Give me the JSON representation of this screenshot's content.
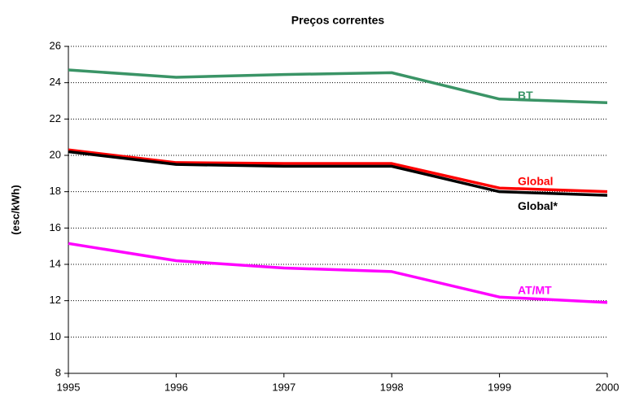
{
  "chart_data": {
    "type": "line",
    "title": "Preços correntes",
    "y_label": "(esc/kWh)",
    "x": [
      1995,
      1996,
      1997,
      1998,
      1999,
      2000
    ],
    "xlim": [
      1995,
      2000
    ],
    "xticks": [
      1995,
      1996,
      1997,
      1998,
      1999,
      2000
    ],
    "ylim": [
      8,
      26
    ],
    "yticks": [
      8,
      10,
      12,
      14,
      16,
      18,
      20,
      22,
      24,
      26
    ],
    "grid": true,
    "series": [
      {
        "name": "BT",
        "color": "#3a9466",
        "values": [
          24.7,
          24.3,
          24.45,
          24.55,
          23.1,
          22.9
        ]
      },
      {
        "name": "Global",
        "color": "#ff0000",
        "values": [
          20.3,
          19.6,
          19.55,
          19.55,
          18.2,
          18.0
        ]
      },
      {
        "name": "Global*",
        "color": "#000000",
        "values": [
          20.2,
          19.5,
          19.4,
          19.4,
          18.0,
          17.8
        ]
      },
      {
        "name": "AT/MT",
        "color": "#ff00ff",
        "values": [
          15.15,
          14.2,
          13.8,
          13.6,
          12.2,
          11.9
        ]
      }
    ]
  }
}
